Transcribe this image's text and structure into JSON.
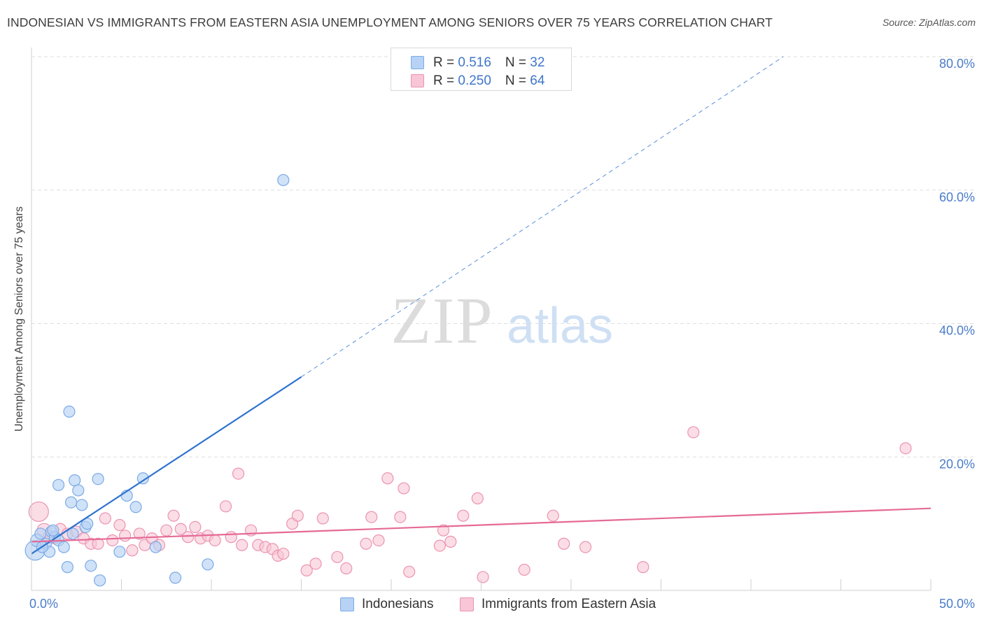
{
  "header": {
    "title": "INDONESIAN VS IMMIGRANTS FROM EASTERN ASIA UNEMPLOYMENT AMONG SENIORS OVER 75 YEARS CORRELATION CHART",
    "source": "Source: ZipAtlas.com"
  },
  "watermark": {
    "zip": "ZIP",
    "atlas": "atlas"
  },
  "colors": {
    "blue_fill": "#b7d2f4",
    "blue_stroke": "#7aaae6",
    "blue_line": "#2f73d0",
    "pink_fill": "#f8c6d6",
    "pink_stroke": "#ec93b1",
    "pink_line": "#e56a96",
    "tick_label": "#4a7cc9",
    "grid": "#dedede"
  },
  "legend_top": {
    "rows": [
      {
        "r_label": "R = ",
        "r_value": "0.516",
        "n_label": "N = ",
        "n_value": "32"
      },
      {
        "r_label": "R = ",
        "r_value": "0.250",
        "n_label": "N = ",
        "n_value": "64"
      }
    ]
  },
  "legend_bottom": {
    "series1": "Indonesians",
    "series2": "Immigrants from Eastern Asia"
  },
  "chart_data": {
    "type": "scatter",
    "title": "INDONESIAN VS IMMIGRANTS FROM EASTERN ASIA UNEMPLOYMENT AMONG SENIORS OVER 75 YEARS CORRELATION CHART",
    "xlabel": "",
    "ylabel": "Unemployment Among Seniors over 75 years",
    "xlim": [
      0,
      50
    ],
    "ylim": [
      0,
      80
    ],
    "x_tick_labels": [
      {
        "value": 0,
        "label": "0.0%"
      },
      {
        "value": 50,
        "label": "50.0%"
      }
    ],
    "y_tick_labels": [
      {
        "value": 20,
        "label": "20.0%"
      },
      {
        "value": 40,
        "label": "40.0%"
      },
      {
        "value": 60,
        "label": "60.0%"
      },
      {
        "value": 80,
        "label": "80.0%"
      }
    ],
    "x_minor_ticks": [
      0,
      5,
      10,
      15,
      20,
      25,
      30,
      35,
      40,
      45,
      50
    ],
    "y_grid": [
      20,
      40,
      60,
      80
    ],
    "grid": true,
    "legend_position": "top-center",
    "series": [
      {
        "name": "Indonesians",
        "R": 0.516,
        "N": 32,
        "trend": {
          "x0": 0.0,
          "y0": 5.5,
          "x1": 15.0,
          "y1": 32.0,
          "extend_to_x": 41.8,
          "extend_to_y": 80.0
        },
        "points": [
          {
            "x": 0.2,
            "y": 6.0,
            "s": 14
          },
          {
            "x": 0.3,
            "y": 7.5,
            "s": 9
          },
          {
            "x": 0.5,
            "y": 8.5,
            "s": 8
          },
          {
            "x": 0.8,
            "y": 7.0,
            "s": 8
          },
          {
            "x": 1.0,
            "y": 5.8,
            "s": 8
          },
          {
            "x": 1.1,
            "y": 8.8,
            "s": 8
          },
          {
            "x": 1.3,
            "y": 8.0,
            "s": 8
          },
          {
            "x": 1.5,
            "y": 7.5,
            "s": 8
          },
          {
            "x": 1.5,
            "y": 15.8,
            "s": 8
          },
          {
            "x": 1.8,
            "y": 6.5,
            "s": 8
          },
          {
            "x": 2.0,
            "y": 3.5,
            "s": 8
          },
          {
            "x": 2.1,
            "y": 26.8,
            "s": 8
          },
          {
            "x": 2.3,
            "y": 8.5,
            "s": 8
          },
          {
            "x": 2.2,
            "y": 13.2,
            "s": 8
          },
          {
            "x": 2.4,
            "y": 16.5,
            "s": 8
          },
          {
            "x": 2.6,
            "y": 15.0,
            "s": 8
          },
          {
            "x": 2.8,
            "y": 12.8,
            "s": 8
          },
          {
            "x": 3.0,
            "y": 9.5,
            "s": 8
          },
          {
            "x": 3.1,
            "y": 10.0,
            "s": 8
          },
          {
            "x": 3.3,
            "y": 3.7,
            "s": 8
          },
          {
            "x": 3.7,
            "y": 16.7,
            "s": 8
          },
          {
            "x": 3.8,
            "y": 1.5,
            "s": 8
          },
          {
            "x": 4.9,
            "y": 5.8,
            "s": 8
          },
          {
            "x": 5.3,
            "y": 14.2,
            "s": 8
          },
          {
            "x": 5.8,
            "y": 12.5,
            "s": 8
          },
          {
            "x": 6.2,
            "y": 16.8,
            "s": 8
          },
          {
            "x": 6.9,
            "y": 6.5,
            "s": 8
          },
          {
            "x": 8.0,
            "y": 1.9,
            "s": 8
          },
          {
            "x": 9.8,
            "y": 3.9,
            "s": 8
          },
          {
            "x": 14.0,
            "y": 61.5,
            "s": 8
          },
          {
            "x": 0.6,
            "y": 6.5,
            "s": 8
          },
          {
            "x": 1.2,
            "y": 9.0,
            "s": 8
          }
        ]
      },
      {
        "name": "Immigrants from Eastern Asia",
        "R": 0.25,
        "N": 64,
        "trend": {
          "x0": 0.0,
          "y0": 7.3,
          "x1": 50.0,
          "y1": 12.3
        },
        "points": [
          {
            "x": 0.4,
            "y": 11.8,
            "s": 14
          },
          {
            "x": 0.7,
            "y": 9.0,
            "s": 10
          },
          {
            "x": 1.0,
            "y": 8.0,
            "s": 9
          },
          {
            "x": 1.3,
            "y": 7.8,
            "s": 8
          },
          {
            "x": 1.6,
            "y": 9.2,
            "s": 8
          },
          {
            "x": 2.0,
            "y": 8.5,
            "s": 8
          },
          {
            "x": 2.5,
            "y": 8.8,
            "s": 8
          },
          {
            "x": 2.9,
            "y": 7.8,
            "s": 8
          },
          {
            "x": 3.3,
            "y": 7.0,
            "s": 8
          },
          {
            "x": 3.7,
            "y": 7.0,
            "s": 8
          },
          {
            "x": 4.1,
            "y": 10.8,
            "s": 8
          },
          {
            "x": 4.5,
            "y": 7.5,
            "s": 8
          },
          {
            "x": 4.9,
            "y": 9.8,
            "s": 8
          },
          {
            "x": 5.2,
            "y": 8.2,
            "s": 8
          },
          {
            "x": 5.6,
            "y": 6.0,
            "s": 8
          },
          {
            "x": 6.0,
            "y": 8.5,
            "s": 8
          },
          {
            "x": 6.3,
            "y": 6.8,
            "s": 8
          },
          {
            "x": 6.7,
            "y": 7.8,
            "s": 8
          },
          {
            "x": 7.1,
            "y": 6.8,
            "s": 8
          },
          {
            "x": 7.5,
            "y": 9.0,
            "s": 8
          },
          {
            "x": 7.9,
            "y": 11.2,
            "s": 8
          },
          {
            "x": 8.3,
            "y": 9.2,
            "s": 8
          },
          {
            "x": 8.7,
            "y": 8.0,
            "s": 8
          },
          {
            "x": 9.1,
            "y": 9.5,
            "s": 8
          },
          {
            "x": 9.4,
            "y": 7.8,
            "s": 8
          },
          {
            "x": 9.8,
            "y": 8.2,
            "s": 8
          },
          {
            "x": 10.2,
            "y": 7.5,
            "s": 8
          },
          {
            "x": 10.8,
            "y": 12.6,
            "s": 8
          },
          {
            "x": 11.1,
            "y": 8.0,
            "s": 8
          },
          {
            "x": 11.5,
            "y": 17.5,
            "s": 8
          },
          {
            "x": 11.7,
            "y": 6.8,
            "s": 8
          },
          {
            "x": 12.2,
            "y": 9.0,
            "s": 8
          },
          {
            "x": 12.6,
            "y": 6.8,
            "s": 8
          },
          {
            "x": 13.0,
            "y": 6.5,
            "s": 8
          },
          {
            "x": 13.4,
            "y": 6.2,
            "s": 8
          },
          {
            "x": 13.7,
            "y": 5.2,
            "s": 8
          },
          {
            "x": 14.0,
            "y": 5.5,
            "s": 8
          },
          {
            "x": 14.5,
            "y": 10.0,
            "s": 8
          },
          {
            "x": 14.8,
            "y": 11.2,
            "s": 8
          },
          {
            "x": 15.3,
            "y": 3.0,
            "s": 8
          },
          {
            "x": 15.8,
            "y": 4.0,
            "s": 8
          },
          {
            "x": 16.2,
            "y": 10.8,
            "s": 8
          },
          {
            "x": 17.0,
            "y": 5.0,
            "s": 8
          },
          {
            "x": 17.5,
            "y": 3.3,
            "s": 8
          },
          {
            "x": 18.6,
            "y": 7.0,
            "s": 8
          },
          {
            "x": 18.9,
            "y": 11.0,
            "s": 8
          },
          {
            "x": 19.3,
            "y": 7.5,
            "s": 8
          },
          {
            "x": 19.8,
            "y": 16.8,
            "s": 8
          },
          {
            "x": 20.5,
            "y": 11.0,
            "s": 8
          },
          {
            "x": 20.7,
            "y": 15.3,
            "s": 8
          },
          {
            "x": 21.0,
            "y": 2.8,
            "s": 8
          },
          {
            "x": 22.7,
            "y": 6.7,
            "s": 8
          },
          {
            "x": 22.9,
            "y": 9.0,
            "s": 8
          },
          {
            "x": 23.3,
            "y": 7.3,
            "s": 8
          },
          {
            "x": 24.0,
            "y": 11.2,
            "s": 8
          },
          {
            "x": 24.8,
            "y": 13.8,
            "s": 8
          },
          {
            "x": 25.1,
            "y": 2.0,
            "s": 8
          },
          {
            "x": 27.4,
            "y": 3.1,
            "s": 8
          },
          {
            "x": 29.0,
            "y": 11.2,
            "s": 8
          },
          {
            "x": 29.6,
            "y": 7.0,
            "s": 8
          },
          {
            "x": 30.8,
            "y": 6.5,
            "s": 8
          },
          {
            "x": 34.0,
            "y": 3.5,
            "s": 8
          },
          {
            "x": 36.8,
            "y": 23.7,
            "s": 8
          },
          {
            "x": 48.6,
            "y": 21.3,
            "s": 8
          }
        ]
      }
    ]
  }
}
